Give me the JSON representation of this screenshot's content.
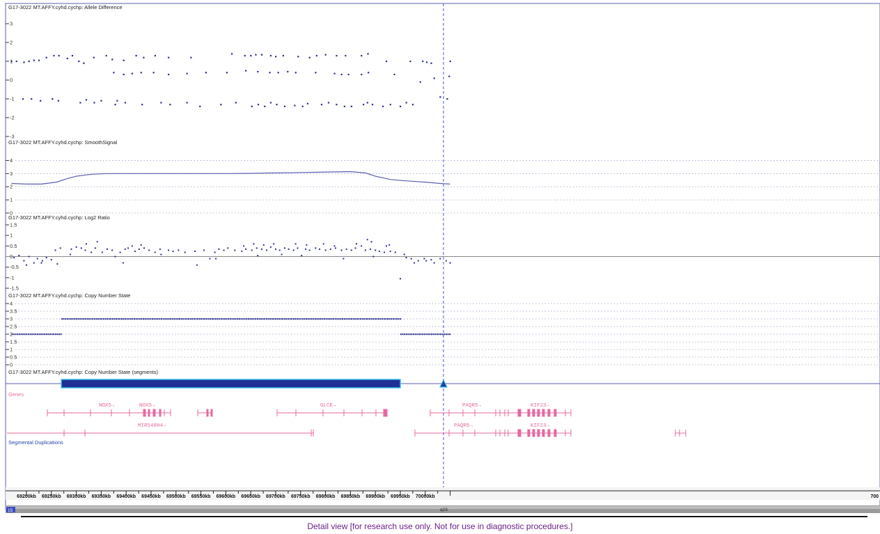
{
  "colors": {
    "frame": "#5b5fb0",
    "points": "#2b2f8f",
    "grid": "#9aa0c8",
    "zero_line": "#888888",
    "genes": "#e46aa0",
    "segment_fill": "#1f2f96",
    "segment_edge": "#33bde6",
    "cursor": "#4a56c8",
    "footer_text": "#6b1f8a",
    "section_label": "#2244aa"
  },
  "chart_data": [
    {
      "type": "scatter",
      "title": "G17-3022 MT.AFFY.cyhd.cychp: Allele Difference",
      "ylim": [
        -3,
        3
      ],
      "yticks": [
        "-3",
        "-2",
        "-1",
        "0",
        "1",
        "2",
        "3"
      ],
      "grid": false,
      "series": [
        {
          "x": [
            69170,
            69180,
            69195,
            69205,
            69215,
            69225,
            69240,
            69255,
            69265,
            69282,
            69292,
            69305,
            69315,
            69335,
            69360,
            69372,
            69395,
            69420,
            69435,
            69458,
            69485,
            69530,
            69612,
            69638,
            69650,
            69660,
            69672,
            69690,
            69700,
            69715,
            69745,
            69768,
            69782,
            69800,
            69822,
            69840,
            69872,
            69885,
            69922,
            69970,
            69995,
            70003,
            70012,
            70050,
            69375,
            69395,
            69412,
            69430,
            69455,
            69485,
            69522,
            69560,
            69602,
            69640,
            69664,
            69688,
            69705,
            69724,
            69740,
            69780,
            69818,
            69832,
            69846,
            69872,
            69886,
            69938,
            69990,
            70018,
            70048,
            69193,
            69210,
            69228,
            69252,
            69264,
            69308,
            69320,
            69336,
            69350,
            69378,
            69382,
            69398,
            69432,
            69470,
            69488,
            69522,
            69548,
            69590,
            69620,
            69652,
            69665,
            69678,
            69690,
            69702,
            69718,
            69738,
            69754,
            69764,
            69792,
            69806,
            69822,
            69838,
            69852,
            69876,
            69884,
            69894,
            69915,
            69930,
            69950,
            69962,
            69975,
            70030,
            70044
          ],
          "y": [
            1.0,
            1.0,
            0.95,
            1.0,
            1.05,
            1.05,
            1.2,
            1.3,
            1.3,
            1.15,
            1.3,
            1.0,
            0.9,
            1.2,
            1.3,
            1.1,
            1.05,
            1.3,
            1.2,
            1.3,
            1.2,
            1.2,
            1.4,
            1.3,
            1.3,
            1.35,
            1.35,
            1.3,
            1.25,
            1.3,
            1.25,
            1.2,
            1.3,
            1.35,
            1.3,
            1.3,
            1.3,
            1.4,
            1.0,
            1.0,
            1.0,
            0.95,
            0.9,
            1.0,
            0.4,
            0.3,
            0.35,
            0.4,
            0.4,
            0.3,
            0.35,
            0.4,
            0.4,
            0.5,
            0.45,
            0.4,
            0.4,
            0.45,
            0.4,
            0.4,
            0.35,
            0.3,
            0.3,
            0.3,
            0.4,
            0.3,
            -0.1,
            0.1,
            0.2,
            -1.0,
            -1.0,
            -1.1,
            -1.0,
            -1.1,
            -1.2,
            -1.05,
            -1.2,
            -1.1,
            -1.3,
            -1.1,
            -1.2,
            -1.3,
            -1.2,
            -1.3,
            -1.2,
            -1.4,
            -1.3,
            -1.2,
            -1.4,
            -1.3,
            -1.4,
            -1.2,
            -1.3,
            -1.4,
            -1.35,
            -1.4,
            -1.25,
            -1.3,
            -1.2,
            -1.3,
            -1.4,
            -1.4,
            -1.3,
            -1.2,
            -1.3,
            -1.4,
            -1.3,
            -1.4,
            -1.2,
            -1.3,
            -0.9,
            -1.0
          ]
        }
      ]
    },
    {
      "type": "line",
      "title": "G17-3022 MT.AFFY.cyhd.cychp: SmoothSignal",
      "ylim": [
        0,
        4.5
      ],
      "yticks": [
        "0",
        "1",
        "2",
        "3",
        "4"
      ],
      "grid": true,
      "series": [
        {
          "x": [
            69170,
            69200,
            69230,
            69260,
            69280,
            69300,
            69330,
            69360,
            69400,
            69450,
            69500,
            69550,
            69600,
            69650,
            69700,
            69750,
            69800,
            69850,
            69880,
            69900,
            69930,
            69960,
            70000,
            70030,
            70050
          ],
          "y": [
            2.25,
            2.2,
            2.2,
            2.35,
            2.6,
            2.8,
            2.95,
            3.0,
            3.0,
            3.0,
            3.0,
            3.0,
            3.0,
            3.02,
            3.05,
            3.08,
            3.12,
            3.15,
            3.05,
            2.8,
            2.55,
            2.45,
            2.35,
            2.25,
            2.2
          ]
        }
      ]
    },
    {
      "type": "scatter",
      "title": "G17-3022 MT.AFFY.cyhd.cychp: Log2 Ratio",
      "ylim": [
        -1.5,
        1.5
      ],
      "yticks": [
        "-1.5",
        "-1",
        "-0.5",
        "0",
        "0.5",
        "1",
        "1.5"
      ],
      "grid": false,
      "series": [
        {
          "x": [
            69175,
            69185,
            69195,
            69205,
            69215,
            69222,
            69232,
            69240,
            69250,
            69258,
            69268,
            69290,
            69300,
            69310,
            69318,
            69330,
            69338,
            69352,
            69362,
            69372,
            69388,
            69398,
            69404,
            69418,
            69426,
            69436,
            69446,
            69458,
            69468,
            69485,
            69494,
            69505,
            69518,
            69538,
            69556,
            69578,
            69586,
            69596,
            69604,
            69618,
            69632,
            69640,
            69652,
            69662,
            69672,
            69682,
            69690,
            69700,
            69708,
            69718,
            69726,
            69736,
            69744,
            69760,
            69768,
            69780,
            69788,
            69800,
            69810,
            69820,
            69832,
            69842,
            69852,
            69860,
            69880,
            69890,
            69900,
            69908,
            69918,
            69930,
            69940,
            69962,
            69972,
            69986,
            69998,
            70012,
            70030,
            70042,
            70050,
            69200,
            69230,
            69262,
            69320,
            69342,
            69394,
            69412,
            69430,
            69542,
            69568,
            69636,
            69656,
            69676,
            69696,
            69740,
            69762,
            69796,
            69818,
            69862,
            69872,
            69892,
            69922,
            69928,
            69958,
            69978,
            70002,
            70018,
            69288,
            69378,
            69470,
            69580,
            69664,
            69712,
            69752,
            69836,
            69884,
            69896,
            69950
          ],
          "y": [
            -0.05,
            0.05,
            -0.2,
            0.0,
            -0.3,
            -0.1,
            -0.2,
            -0.05,
            -0.15,
            0.3,
            0.4,
            0.35,
            0.45,
            0.4,
            0.3,
            0.2,
            0.4,
            0.2,
            0.35,
            0.3,
            0.2,
            0.35,
            0.4,
            0.25,
            0.35,
            0.4,
            0.3,
            0.2,
            0.35,
            0.3,
            0.25,
            0.3,
            0.2,
            0.25,
            0.3,
            0.2,
            0.35,
            0.3,
            0.4,
            0.3,
            0.25,
            0.35,
            0.3,
            0.4,
            0.35,
            0.3,
            0.45,
            0.35,
            0.3,
            0.4,
            0.35,
            0.3,
            0.4,
            0.35,
            0.3,
            0.4,
            0.35,
            0.3,
            0.35,
            0.4,
            0.3,
            0.35,
            0.3,
            0.4,
            0.3,
            0.35,
            0.3,
            0.25,
            0.2,
            0.25,
            0.2,
            -0.05,
            -0.1,
            -0.2,
            -0.1,
            -0.15,
            -0.1,
            -0.2,
            -0.3,
            -0.4,
            -0.3,
            -0.35,
            0.6,
            0.7,
            -0.3,
            0.5,
            0.55,
            -0.4,
            -0.1,
            0.5,
            0.6,
            0.55,
            0.6,
            0.6,
            0.55,
            0.6,
            0.5,
            0.6,
            0.5,
            0.7,
            0.5,
            0.55,
            0.1,
            -0.3,
            -0.2,
            -0.3,
            0.1,
            0.0,
            0.1,
            -0.1,
            0.05,
            0.1,
            0.05,
            -0.1,
            0.8,
            0.0,
            -1.05
          ]
        }
      ]
    },
    {
      "type": "scatter",
      "title": "G17-3022 MT.AFFY.cyhd.cychp: Copy Number State",
      "ylim": [
        0,
        4
      ],
      "yticks": [
        "0",
        "0.5",
        "1",
        "1.5",
        "2",
        "2.5",
        "3",
        "3.5",
        "4"
      ],
      "grid": true,
      "series": [
        {
          "name": "",
          "x_range": [
            69170,
            69270
          ],
          "y": 2
        },
        {
          "name": "",
          "x_range": [
            69270,
            69950
          ],
          "y": 3
        },
        {
          "name": "",
          "x_range": [
            69950,
            70050
          ],
          "y": 2
        }
      ]
    }
  ],
  "segments_track": {
    "title": "G17-3022 MT.AFFY.cyhd.cychp: Copy Number State (segments)",
    "segment_range": [
      69270,
      69950
    ]
  },
  "genes_track": {
    "label": "Genes",
    "row1": [
      "NOX5→",
      "NOX5→",
      "GLCE→",
      "PAQR5→",
      "KIF23→"
    ],
    "row2": [
      "MIR548H4→",
      "PAQR5→",
      "KIF23→"
    ]
  },
  "segdup_track": {
    "label": "Segmental Duplications"
  },
  "axis": {
    "labels": [
      "69200kb",
      "69250kb",
      "69300kb",
      "69350kb",
      "69400kb",
      "69450kb",
      "69500kb",
      "69550kb",
      "69600kb",
      "69650kb",
      "69700kb",
      "69750kb",
      "69800kb",
      "69850kb",
      "69900kb",
      "69950kb",
      "70000kb",
      "700"
    ]
  },
  "cytoband": {
    "chrom": "15",
    "band": "q23"
  },
  "footer": "Detail view [for research use only. Not for use in diagnostic procedures.]"
}
